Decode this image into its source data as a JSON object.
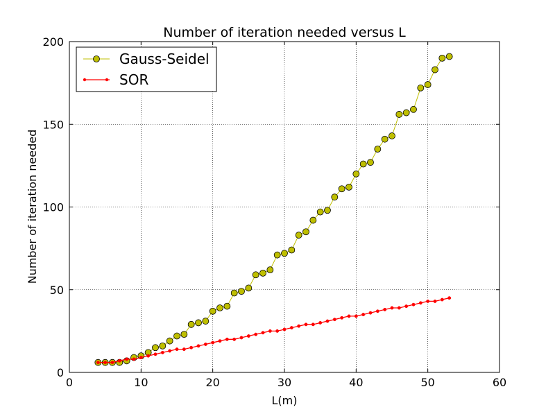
{
  "chart_data": {
    "type": "line",
    "title": "Number of iteration needed versus L",
    "xlabel": "L(m)",
    "ylabel": "Number of iteration needed",
    "xlim": [
      0,
      60
    ],
    "ylim": [
      0,
      200
    ],
    "xticks": [
      0,
      10,
      20,
      30,
      40,
      50,
      60
    ],
    "yticks": [
      0,
      50,
      100,
      150,
      200
    ],
    "grid": true,
    "legend_position": "upper-left",
    "x": [
      4,
      5,
      6,
      7,
      8,
      9,
      10,
      11,
      12,
      13,
      14,
      15,
      16,
      17,
      18,
      19,
      20,
      21,
      22,
      23,
      24,
      25,
      26,
      27,
      28,
      29,
      30,
      31,
      32,
      33,
      34,
      35,
      36,
      37,
      38,
      39,
      40,
      41,
      42,
      43,
      44,
      45,
      46,
      47,
      48,
      49,
      50,
      51,
      52,
      53
    ],
    "series": [
      {
        "name": "Gauss-Seidel",
        "color": "#bfbf00",
        "marker": "circle",
        "values": [
          6,
          6,
          6,
          6,
          7,
          9,
          10,
          12,
          15,
          16,
          19,
          22,
          23,
          29,
          30,
          31,
          37,
          39,
          40,
          48,
          49,
          51,
          59,
          60,
          62,
          71,
          72,
          74,
          83,
          85,
          92,
          97,
          98,
          106,
          111,
          112,
          120,
          126,
          127,
          135,
          141,
          143,
          156,
          157,
          159,
          172,
          174,
          183,
          190,
          191
        ]
      },
      {
        "name": "SOR",
        "color": "#ff0000",
        "marker": "dot",
        "values": [
          6,
          6,
          6,
          7,
          8,
          8,
          9,
          10,
          11,
          12,
          13,
          14,
          14,
          15,
          16,
          17,
          18,
          19,
          20,
          20,
          21,
          22,
          23,
          24,
          25,
          25,
          26,
          27,
          28,
          29,
          29,
          30,
          31,
          32,
          33,
          34,
          34,
          35,
          36,
          37,
          38,
          39,
          39,
          40,
          41,
          42,
          43,
          43,
          44,
          45
        ]
      }
    ]
  }
}
